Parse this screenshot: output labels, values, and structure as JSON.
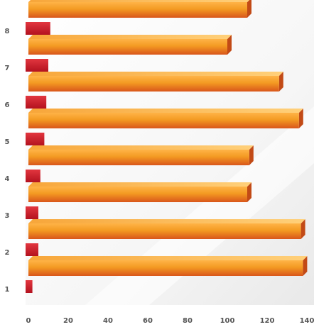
{
  "chart_data": {
    "type": "bar",
    "orientation": "horizontal",
    "categories": [
      "1",
      "2",
      "3",
      "4",
      "5",
      "6",
      "7",
      "8"
    ],
    "series": [
      {
        "values": [
          2,
          5,
          5,
          6,
          8,
          9,
          10,
          11
        ],
        "color": "#D0202E"
      },
      {
        "values": [
          138,
          137,
          110,
          111,
          136,
          126,
          100,
          110
        ],
        "color": "#F18A1C"
      }
    ],
    "x_ticks": [
      0,
      20,
      40,
      60,
      80,
      100,
      120,
      140
    ],
    "xlim": [
      0,
      140
    ],
    "legend": "none",
    "grid": false,
    "title": "",
    "xlabel": "",
    "ylabel": ""
  }
}
